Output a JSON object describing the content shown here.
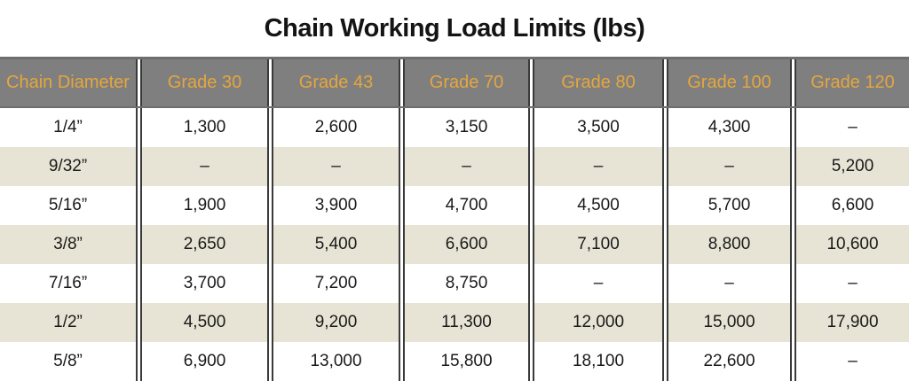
{
  "title": "Chain Working Load Limits (lbs)",
  "colors": {
    "header_background": "#7f7f7f",
    "header_text": "#e6a63d",
    "stripe_background": "#e8e4d5",
    "separator_line": "#3a3a3a",
    "body_text": "#1a1a1a"
  },
  "chart_data": {
    "type": "table",
    "title": "Chain Working Load Limits (lbs)",
    "columns": [
      "Chain Diameter",
      "Grade 30",
      "Grade 43",
      "Grade 70",
      "Grade 80",
      "Grade 100",
      "Grade 120"
    ],
    "rows": [
      [
        "1/4”",
        "1,300",
        "2,600",
        "3,150",
        "3,500",
        "4,300",
        "–"
      ],
      [
        "9/32”",
        "–",
        "–",
        "–",
        "–",
        "–",
        "5,200"
      ],
      [
        "5/16”",
        "1,900",
        "3,900",
        "4,700",
        "4,500",
        "5,700",
        "6,600"
      ],
      [
        "3/8”",
        "2,650",
        "5,400",
        "6,600",
        "7,100",
        "8,800",
        "10,600"
      ],
      [
        "7/16”",
        "3,700",
        "7,200",
        "8,750",
        "–",
        "–",
        "–"
      ],
      [
        "1/2”",
        "4,500",
        "9,200",
        "11,300",
        "12,000",
        "15,000",
        "17,900"
      ],
      [
        "5/8”",
        "6,900",
        "13,000",
        "15,800",
        "18,100",
        "22,600",
        "–"
      ]
    ]
  }
}
